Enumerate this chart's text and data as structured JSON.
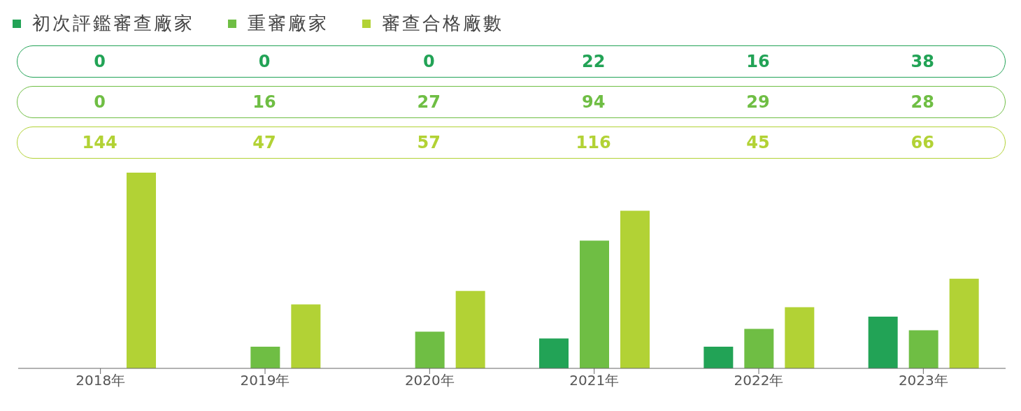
{
  "chart_data": {
    "type": "bar",
    "categories": [
      "2018年",
      "2019年",
      "2020年",
      "2021年",
      "2022年",
      "2023年"
    ],
    "series": [
      {
        "name": "初次評鑑審查廠家",
        "color": "#22a356",
        "values": [
          0,
          0,
          0,
          22,
          16,
          38
        ]
      },
      {
        "name": "重審廠家",
        "color": "#6fbe44",
        "values": [
          0,
          16,
          27,
          94,
          29,
          28
        ]
      },
      {
        "name": "審查合格廠數",
        "color": "#b2d235",
        "values": [
          144,
          47,
          57,
          116,
          45,
          66
        ]
      }
    ],
    "data_labels": true,
    "legend": "top left",
    "grid": false
  }
}
